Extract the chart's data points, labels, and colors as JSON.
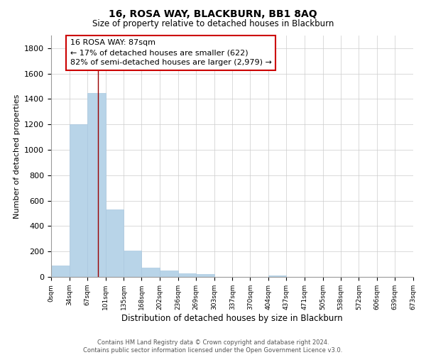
{
  "title": "16, ROSA WAY, BLACKBURN, BB1 8AQ",
  "subtitle": "Size of property relative to detached houses in Blackburn",
  "xlabel": "Distribution of detached houses by size in Blackburn",
  "ylabel": "Number of detached properties",
  "bar_color": "#b8d4e8",
  "grid_color": "#cccccc",
  "property_line_color": "#990000",
  "property_line_x": 87,
  "annotation_line1": "16 ROSA WAY: 87sqm",
  "annotation_line2": "← 17% of detached houses are smaller (622)",
  "annotation_line3": "82% of semi-detached houses are larger (2,979) →",
  "annotation_box_edge": "#cc0000",
  "bin_edges": [
    0,
    34,
    67,
    101,
    135,
    168,
    202,
    236,
    269,
    303,
    337,
    370,
    404,
    437,
    471,
    505,
    538,
    572,
    606,
    639,
    673
  ],
  "bin_values": [
    90,
    1200,
    1450,
    530,
    205,
    70,
    48,
    30,
    20,
    0,
    0,
    0,
    10,
    0,
    0,
    0,
    0,
    0,
    0,
    0
  ],
  "ylim": [
    0,
    1900
  ],
  "yticks": [
    0,
    200,
    400,
    600,
    800,
    1000,
    1200,
    1400,
    1600,
    1800
  ],
  "footer_text": "Contains HM Land Registry data © Crown copyright and database right 2024.\nContains public sector information licensed under the Open Government Licence v3.0.",
  "tick_labels": [
    "0sqm",
    "34sqm",
    "67sqm",
    "101sqm",
    "135sqm",
    "168sqm",
    "202sqm",
    "236sqm",
    "269sqm",
    "303sqm",
    "337sqm",
    "370sqm",
    "404sqm",
    "437sqm",
    "471sqm",
    "505sqm",
    "538sqm",
    "572sqm",
    "606sqm",
    "639sqm",
    "673sqm"
  ]
}
